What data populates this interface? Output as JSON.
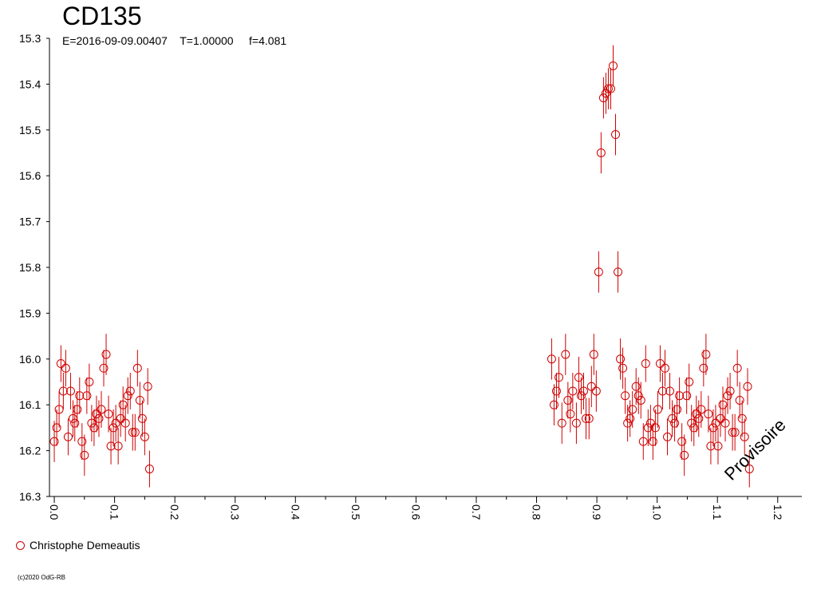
{
  "chart_data": {
    "type": "scatter",
    "title": "CD135",
    "subtitle": "E=2016-09-09.00407    T=1.00000     f=4.081",
    "xlabel": "",
    "ylabel": "",
    "xlim": [
      -0.008,
      1.24
    ],
    "ylim": [
      16.3,
      15.3
    ],
    "y_inverted": true,
    "x_ticks": [
      "0.0",
      "0.1",
      "0.2",
      "0.3",
      "0.4",
      "0.5",
      "0.6",
      "0.7",
      "0.8",
      "0.9",
      "1.0",
      "1.1",
      "1.2"
    ],
    "y_ticks": [
      "15.3",
      "15.4",
      "15.5",
      "15.6",
      "15.7",
      "15.8",
      "15.9",
      "16.0",
      "16.1",
      "16.2",
      "16.3"
    ],
    "grid": false,
    "legend": "bottom-left",
    "series": [
      {
        "name": "Christophe Demeautis",
        "color": "#d00000",
        "marker": "open-circle",
        "points": [
          [
            0.0,
            16.18,
            0.045
          ],
          [
            0.004,
            16.15,
            0.04
          ],
          [
            0.008,
            16.11,
            0.04
          ],
          [
            0.011,
            16.01,
            0.04
          ],
          [
            0.015,
            16.07,
            0.04
          ],
          [
            0.019,
            16.02,
            0.04
          ],
          [
            0.023,
            16.17,
            0.04
          ],
          [
            0.027,
            16.07,
            0.04
          ],
          [
            0.031,
            16.13,
            0.04
          ],
          [
            0.034,
            16.14,
            0.04
          ],
          [
            0.038,
            16.11,
            0.04
          ],
          [
            0.042,
            16.08,
            0.04
          ],
          [
            0.046,
            16.18,
            0.04
          ],
          [
            0.05,
            16.21,
            0.045
          ],
          [
            0.054,
            16.08,
            0.04
          ],
          [
            0.058,
            16.05,
            0.04
          ],
          [
            0.062,
            16.14,
            0.04
          ],
          [
            0.066,
            16.15,
            0.04
          ],
          [
            0.07,
            16.12,
            0.04
          ],
          [
            0.074,
            16.13,
            0.04
          ],
          [
            0.078,
            16.11,
            0.04
          ],
          [
            0.082,
            16.02,
            0.04
          ],
          [
            0.086,
            15.99,
            0.045
          ],
          [
            0.09,
            16.12,
            0.04
          ],
          [
            0.094,
            16.19,
            0.04
          ],
          [
            0.098,
            16.15,
            0.04
          ],
          [
            0.102,
            16.14,
            0.04
          ],
          [
            0.106,
            16.19,
            0.04
          ],
          [
            0.11,
            16.13,
            0.04
          ],
          [
            0.114,
            16.1,
            0.04
          ],
          [
            0.118,
            16.14,
            0.04
          ],
          [
            0.122,
            16.08,
            0.04
          ],
          [
            0.126,
            16.07,
            0.04
          ],
          [
            0.13,
            16.16,
            0.04
          ],
          [
            0.134,
            16.16,
            0.04
          ],
          [
            0.138,
            16.02,
            0.04
          ],
          [
            0.142,
            16.09,
            0.04
          ],
          [
            0.146,
            16.13,
            0.04
          ],
          [
            0.15,
            16.17,
            0.04
          ],
          [
            0.155,
            16.06,
            0.04
          ],
          [
            0.158,
            16.24,
            0.04
          ],
          [
            0.825,
            16.0,
            0.045
          ],
          [
            0.829,
            16.1,
            0.045
          ],
          [
            0.833,
            16.07,
            0.04
          ],
          [
            0.837,
            16.04,
            0.045
          ],
          [
            0.842,
            16.14,
            0.045
          ],
          [
            0.848,
            15.99,
            0.045
          ],
          [
            0.852,
            16.09,
            0.04
          ],
          [
            0.856,
            16.12,
            0.04
          ],
          [
            0.86,
            16.07,
            0.04
          ],
          [
            0.866,
            16.14,
            0.045
          ],
          [
            0.87,
            16.04,
            0.045
          ],
          [
            0.874,
            16.08,
            0.04
          ],
          [
            0.878,
            16.07,
            0.04
          ],
          [
            0.882,
            16.13,
            0.045
          ],
          [
            0.887,
            16.13,
            0.045
          ],
          [
            0.891,
            16.06,
            0.045
          ],
          [
            0.895,
            15.99,
            0.045
          ],
          [
            0.899,
            16.07,
            0.045
          ],
          [
            0.903,
            15.81,
            0.045
          ],
          [
            0.907,
            15.55,
            0.045
          ],
          [
            0.911,
            15.43,
            0.045
          ],
          [
            0.915,
            15.42,
            0.045
          ],
          [
            0.919,
            15.41,
            0.045
          ],
          [
            0.923,
            15.41,
            0.045
          ],
          [
            0.927,
            15.36,
            0.045
          ],
          [
            0.931,
            15.51,
            0.045
          ],
          [
            0.935,
            15.81,
            0.045
          ],
          [
            0.939,
            16.0,
            0.045
          ],
          [
            0.943,
            16.02,
            0.045
          ],
          [
            0.947,
            16.08,
            0.04
          ],
          [
            0.951,
            16.14,
            0.04
          ],
          [
            0.955,
            16.13,
            0.04
          ],
          [
            0.959,
            16.11,
            0.04
          ],
          [
            0.965,
            16.06,
            0.04
          ],
          [
            0.969,
            16.08,
            0.04
          ],
          [
            0.973,
            16.09,
            0.04
          ],
          [
            0.977,
            16.18,
            0.04
          ],
          [
            0.981,
            16.01,
            0.04
          ],
          [
            0.985,
            16.15,
            0.04
          ],
          [
            0.989,
            16.14,
            0.04
          ],
          [
            0.993,
            16.18,
            0.04
          ],
          [
            0.997,
            16.15,
            0.04
          ],
          [
            1.001,
            16.11,
            0.04
          ],
          [
            1.005,
            16.01,
            0.04
          ],
          [
            1.009,
            16.07,
            0.04
          ],
          [
            1.013,
            16.02,
            0.04
          ],
          [
            1.017,
            16.17,
            0.04
          ],
          [
            1.021,
            16.07,
            0.04
          ],
          [
            1.025,
            16.13,
            0.04
          ],
          [
            1.029,
            16.14,
            0.04
          ],
          [
            1.033,
            16.11,
            0.04
          ],
          [
            1.037,
            16.08,
            0.04
          ],
          [
            1.041,
            16.18,
            0.04
          ],
          [
            1.045,
            16.21,
            0.045
          ],
          [
            1.049,
            16.08,
            0.04
          ],
          [
            1.053,
            16.05,
            0.04
          ],
          [
            1.057,
            16.14,
            0.04
          ],
          [
            1.061,
            16.15,
            0.04
          ],
          [
            1.065,
            16.12,
            0.04
          ],
          [
            1.069,
            16.13,
            0.04
          ],
          [
            1.073,
            16.11,
            0.04
          ],
          [
            1.077,
            16.02,
            0.04
          ],
          [
            1.081,
            15.99,
            0.045
          ],
          [
            1.085,
            16.12,
            0.04
          ],
          [
            1.089,
            16.19,
            0.04
          ],
          [
            1.093,
            16.15,
            0.04
          ],
          [
            1.097,
            16.14,
            0.04
          ],
          [
            1.101,
            16.19,
            0.04
          ],
          [
            1.105,
            16.13,
            0.04
          ],
          [
            1.109,
            16.1,
            0.04
          ],
          [
            1.113,
            16.14,
            0.04
          ],
          [
            1.117,
            16.08,
            0.04
          ],
          [
            1.121,
            16.07,
            0.04
          ],
          [
            1.125,
            16.16,
            0.04
          ],
          [
            1.129,
            16.16,
            0.04
          ],
          [
            1.133,
            16.02,
            0.04
          ],
          [
            1.137,
            16.09,
            0.04
          ],
          [
            1.141,
            16.13,
            0.04
          ],
          [
            1.145,
            16.17,
            0.04
          ],
          [
            1.15,
            16.06,
            0.04
          ],
          [
            1.153,
            16.24,
            0.04
          ]
        ]
      }
    ]
  },
  "legend_label": "Christophe Demeautis",
  "watermark": "Provisoire",
  "copyright": "(c)2020 OdG-RB"
}
